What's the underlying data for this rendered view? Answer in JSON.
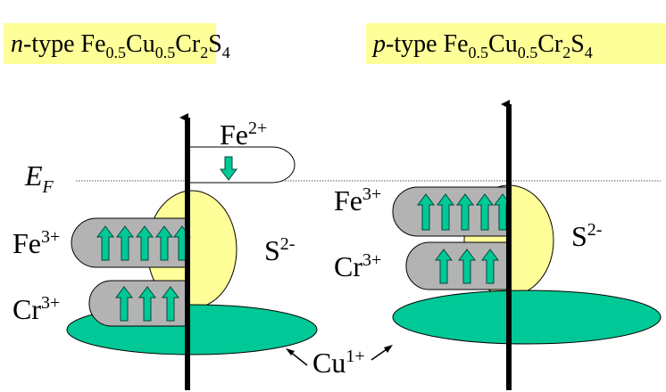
{
  "titles": [
    [
      "n",
      "-type Fe",
      "0.5",
      "Cu",
      "0.5",
      "Cr",
      "2",
      "S",
      "4"
    ],
    [
      "p",
      "-type Fe",
      "0.5",
      "Cu",
      "0.5",
      "Cr",
      "2",
      "S",
      "4"
    ]
  ],
  "fermi": [
    "E",
    "F"
  ],
  "left": {
    "fe2": [
      "Fe",
      "2+"
    ],
    "fe3": [
      "Fe",
      "3+"
    ],
    "cr3": [
      "Cr",
      "3+"
    ],
    "s": [
      "S",
      "2-"
    ],
    "cu": [
      "Cu",
      "1+"
    ]
  },
  "right": {
    "fe3": [
      "Fe",
      "3+"
    ],
    "cr3": [
      "Cr",
      "3+"
    ],
    "s": [
      "S",
      "2-"
    ]
  }
}
